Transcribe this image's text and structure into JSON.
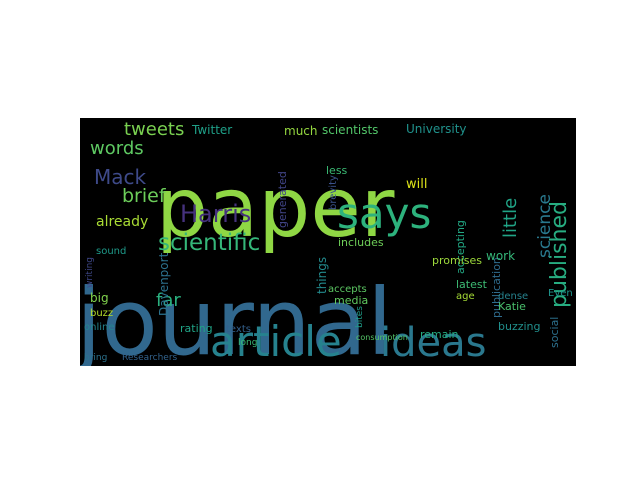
{
  "figure": {
    "type": "word-cloud",
    "background": "#000000",
    "page_background": "#ffffff",
    "palette": [
      "#440154",
      "#3b528b",
      "#21918c",
      "#5ec962",
      "#fde725"
    ],
    "words": [
      {
        "text": "journal",
        "color": "#31688e"
      },
      {
        "text": "paper",
        "color": "#8fd744"
      },
      {
        "text": "article",
        "color": "#26828e"
      },
      {
        "text": "ideas",
        "color": "#2a788e"
      },
      {
        "text": "says",
        "color": "#2db27d"
      },
      {
        "text": "published",
        "color": "#27ad81"
      },
      {
        "text": "scientific",
        "color": "#35b779"
      },
      {
        "text": "Harris",
        "color": "#46327e"
      },
      {
        "text": "Mack",
        "color": "#3e4a89"
      },
      {
        "text": "brief",
        "color": "#6ccd5a"
      },
      {
        "text": "tweets",
        "color": "#7ad151"
      },
      {
        "text": "words",
        "color": "#5ec962"
      },
      {
        "text": "science",
        "color": "#29798e"
      },
      {
        "text": "little",
        "color": "#20a486"
      },
      {
        "text": "already",
        "color": "#a8db34"
      },
      {
        "text": "far",
        "color": "#2ab07f"
      },
      {
        "text": "Twitter",
        "color": "#1fa088"
      },
      {
        "text": "University",
        "color": "#20928c"
      },
      {
        "text": "scientists",
        "color": "#52c569"
      },
      {
        "text": "much",
        "color": "#95d840"
      },
      {
        "text": "will",
        "color": "#dde318"
      },
      {
        "text": "generated",
        "color": "#414487"
      },
      {
        "text": "Davenport",
        "color": "#2c728e"
      },
      {
        "text": "things",
        "color": "#238a8d"
      },
      {
        "text": "brevity",
        "color": "#3b528b"
      },
      {
        "text": "includes",
        "color": "#6ece58"
      },
      {
        "text": "accepting",
        "color": "#22a884"
      },
      {
        "text": "publication",
        "color": "#2f6c8e"
      },
      {
        "text": "promises",
        "color": "#9dd93b"
      },
      {
        "text": "work",
        "color": "#35b779"
      },
      {
        "text": "latest",
        "color": "#3dbc74"
      },
      {
        "text": "age",
        "color": "#a5db36"
      },
      {
        "text": "dense",
        "color": "#26828e"
      },
      {
        "text": "Katie",
        "color": "#4ac16d"
      },
      {
        "text": "social",
        "color": "#2d718e"
      },
      {
        "text": "Even",
        "color": "#1f948c"
      },
      {
        "text": "media",
        "color": "#60ca60"
      },
      {
        "text": "accepts",
        "color": "#5cc863"
      },
      {
        "text": "remain",
        "color": "#25ab82"
      },
      {
        "text": "buzzing",
        "color": "#21908d"
      },
      {
        "text": "rating",
        "color": "#20a386"
      },
      {
        "text": "texts",
        "color": "#34618d"
      },
      {
        "text": "long",
        "color": "#3aba76"
      },
      {
        "text": "big",
        "color": "#81d34d"
      },
      {
        "text": "buzz",
        "color": "#b5de2b"
      },
      {
        "text": "online",
        "color": "#25858e"
      },
      {
        "text": "bring",
        "color": "#2c738e"
      },
      {
        "text": "Researchers",
        "color": "#33638d"
      },
      {
        "text": "sound",
        "color": "#1e9b8a"
      },
      {
        "text": "writing",
        "color": "#3f4889"
      },
      {
        "text": "less",
        "color": "#3bbb75"
      },
      {
        "text": "bites",
        "color": "#1f9e89"
      },
      {
        "text": "consumption",
        "color": "#54c568"
      }
    ]
  }
}
